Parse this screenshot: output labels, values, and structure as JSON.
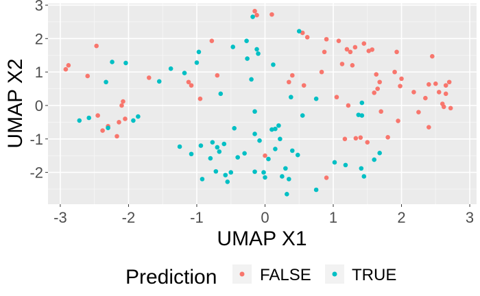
{
  "chart_data": {
    "type": "scatter",
    "xlabel": "UMAP X1",
    "ylabel": "UMAP X2",
    "xlim": [
      -3.18,
      3.1
    ],
    "ylim": [
      -2.95,
      3.05
    ],
    "xticks": [
      -3,
      -2,
      -1,
      0,
      1,
      2,
      3
    ],
    "yticks": [
      -2,
      -1,
      0,
      1,
      2,
      3
    ],
    "grid": true,
    "panel_background": "#ebebeb",
    "legend": {
      "title": "Prediction",
      "position": "bottom",
      "entries": [
        {
          "label": "FALSE",
          "color": "#f8766d"
        },
        {
          "label": "TRUE",
          "color": "#00bfc4"
        }
      ]
    },
    "series": [
      {
        "name": "FALSE",
        "color": "#f8766d",
        "points": [
          [
            -2.92,
            1.08
          ],
          [
            -2.88,
            1.2
          ],
          [
            -2.6,
            0.88
          ],
          [
            -2.47,
            1.78
          ],
          [
            -2.45,
            -0.3
          ],
          [
            -2.38,
            -0.75
          ],
          [
            -2.3,
            -0.62
          ],
          [
            -2.17,
            -0.92
          ],
          [
            -2.14,
            -0.5
          ],
          [
            -2.1,
            0.0
          ],
          [
            -2.08,
            0.12
          ],
          [
            -2.05,
            -0.4
          ],
          [
            -1.7,
            0.83
          ],
          [
            -1.12,
            0.7
          ],
          [
            -1.08,
            0.6
          ],
          [
            -0.95,
            0.2
          ],
          [
            -0.78,
            1.93
          ],
          [
            -0.7,
            0.9
          ],
          [
            -0.15,
            2.82
          ],
          [
            -0.12,
            2.7
          ],
          [
            0.1,
            2.72
          ],
          [
            0.0,
            -1.5
          ],
          [
            0.35,
            0.7
          ],
          [
            0.4,
            0.9
          ],
          [
            0.57,
            0.6
          ],
          [
            0.55,
            2.17
          ],
          [
            0.62,
            2.04
          ],
          [
            0.83,
            1.0
          ],
          [
            0.87,
            1.6
          ],
          [
            0.9,
            1.98
          ],
          [
            0.9,
            -2.16
          ],
          [
            1.05,
            0.25
          ],
          [
            1.08,
            1.93
          ],
          [
            1.13,
            1.24
          ],
          [
            1.17,
            -1.0
          ],
          [
            1.2,
            1.68
          ],
          [
            1.22,
            0.0
          ],
          [
            1.25,
            1.6
          ],
          [
            1.28,
            1.2
          ],
          [
            1.32,
            1.74
          ],
          [
            1.33,
            -0.98
          ],
          [
            1.4,
            -0.96
          ],
          [
            1.45,
            1.85
          ],
          [
            1.5,
            -1.1
          ],
          [
            1.52,
            1.63
          ],
          [
            1.57,
            1.67
          ],
          [
            1.6,
            0.38
          ],
          [
            1.63,
            0.93
          ],
          [
            1.65,
            0.5
          ],
          [
            1.68,
            0.7
          ],
          [
            1.7,
            -0.18
          ],
          [
            1.8,
            -0.95
          ],
          [
            1.9,
            1.0
          ],
          [
            1.93,
            1.6
          ],
          [
            1.95,
            -0.46
          ],
          [
            1.98,
            0.58
          ],
          [
            2.0,
            0.8
          ],
          [
            2.18,
            0.4
          ],
          [
            2.25,
            -0.2
          ],
          [
            2.35,
            0.22
          ],
          [
            2.4,
            0.63
          ],
          [
            2.4,
            -0.65
          ],
          [
            2.45,
            1.47
          ],
          [
            2.5,
            0.65
          ],
          [
            2.55,
            0.4
          ],
          [
            2.6,
            0.05
          ],
          [
            2.62,
            -0.04
          ],
          [
            2.65,
            0.35
          ],
          [
            2.65,
            0.6
          ],
          [
            2.7,
            0.7
          ],
          [
            2.72,
            -0.08
          ]
        ]
      },
      {
        "name": "TRUE",
        "color": "#00bfc4",
        "points": [
          [
            -2.72,
            -0.45
          ],
          [
            -2.58,
            -0.37
          ],
          [
            -2.33,
            0.7
          ],
          [
            -2.3,
            -0.67
          ],
          [
            -2.24,
            1.3
          ],
          [
            -2.04,
            1.27
          ],
          [
            -1.93,
            -0.45
          ],
          [
            -1.86,
            -0.33
          ],
          [
            -1.55,
            0.72
          ],
          [
            -1.38,
            1.1
          ],
          [
            -1.25,
            -1.23
          ],
          [
            -1.18,
            0.97
          ],
          [
            -1.08,
            -1.45
          ],
          [
            -1.0,
            1.28
          ],
          [
            -0.97,
            1.6
          ],
          [
            -0.94,
            -1.2
          ],
          [
            -0.92,
            -2.2
          ],
          [
            -0.8,
            -1.58
          ],
          [
            -0.77,
            -1.1
          ],
          [
            -0.72,
            -1.97
          ],
          [
            -0.7,
            -1.25
          ],
          [
            -0.67,
            -1.38
          ],
          [
            -0.65,
            0.35
          ],
          [
            -0.6,
            -1.15
          ],
          [
            -0.58,
            -2.08
          ],
          [
            -0.55,
            -2.28
          ],
          [
            -0.5,
            -2.0
          ],
          [
            -0.47,
            1.75
          ],
          [
            -0.45,
            -0.68
          ],
          [
            -0.4,
            -1.55
          ],
          [
            -0.3,
            -1.43
          ],
          [
            -0.27,
            1.93
          ],
          [
            -0.26,
            1.4
          ],
          [
            -0.2,
            0.78
          ],
          [
            -0.15,
            -0.18
          ],
          [
            -0.15,
            -0.85
          ],
          [
            -0.12,
            1.68
          ],
          [
            -0.1,
            1.55
          ],
          [
            -0.18,
            2.65
          ],
          [
            -0.15,
            -1.98
          ],
          [
            -0.08,
            -1.05
          ],
          [
            -0.02,
            -2.0
          ],
          [
            0.0,
            -2.15
          ],
          [
            0.05,
            -1.6
          ],
          [
            0.1,
            -0.72
          ],
          [
            0.12,
            1.22
          ],
          [
            0.15,
            -0.7
          ],
          [
            0.15,
            -1.3
          ],
          [
            0.2,
            -0.6
          ],
          [
            0.22,
            -1.0
          ],
          [
            0.25,
            -2.12
          ],
          [
            0.3,
            -1.88
          ],
          [
            0.32,
            -2.65
          ],
          [
            0.35,
            -2.2
          ],
          [
            0.38,
            0.25
          ],
          [
            0.4,
            -1.35
          ],
          [
            0.48,
            -1.48
          ],
          [
            0.5,
            2.22
          ],
          [
            0.55,
            -0.3
          ],
          [
            0.75,
            0.2
          ],
          [
            0.75,
            -2.52
          ],
          [
            1.02,
            -1.7
          ],
          [
            1.18,
            -1.78
          ],
          [
            1.37,
            -0.28
          ],
          [
            1.42,
            0.08
          ],
          [
            1.41,
            -1.88
          ],
          [
            1.42,
            -0.3
          ],
          [
            1.45,
            -2.12
          ],
          [
            1.6,
            -1.62
          ],
          [
            1.68,
            -1.42
          ]
        ]
      }
    ]
  }
}
